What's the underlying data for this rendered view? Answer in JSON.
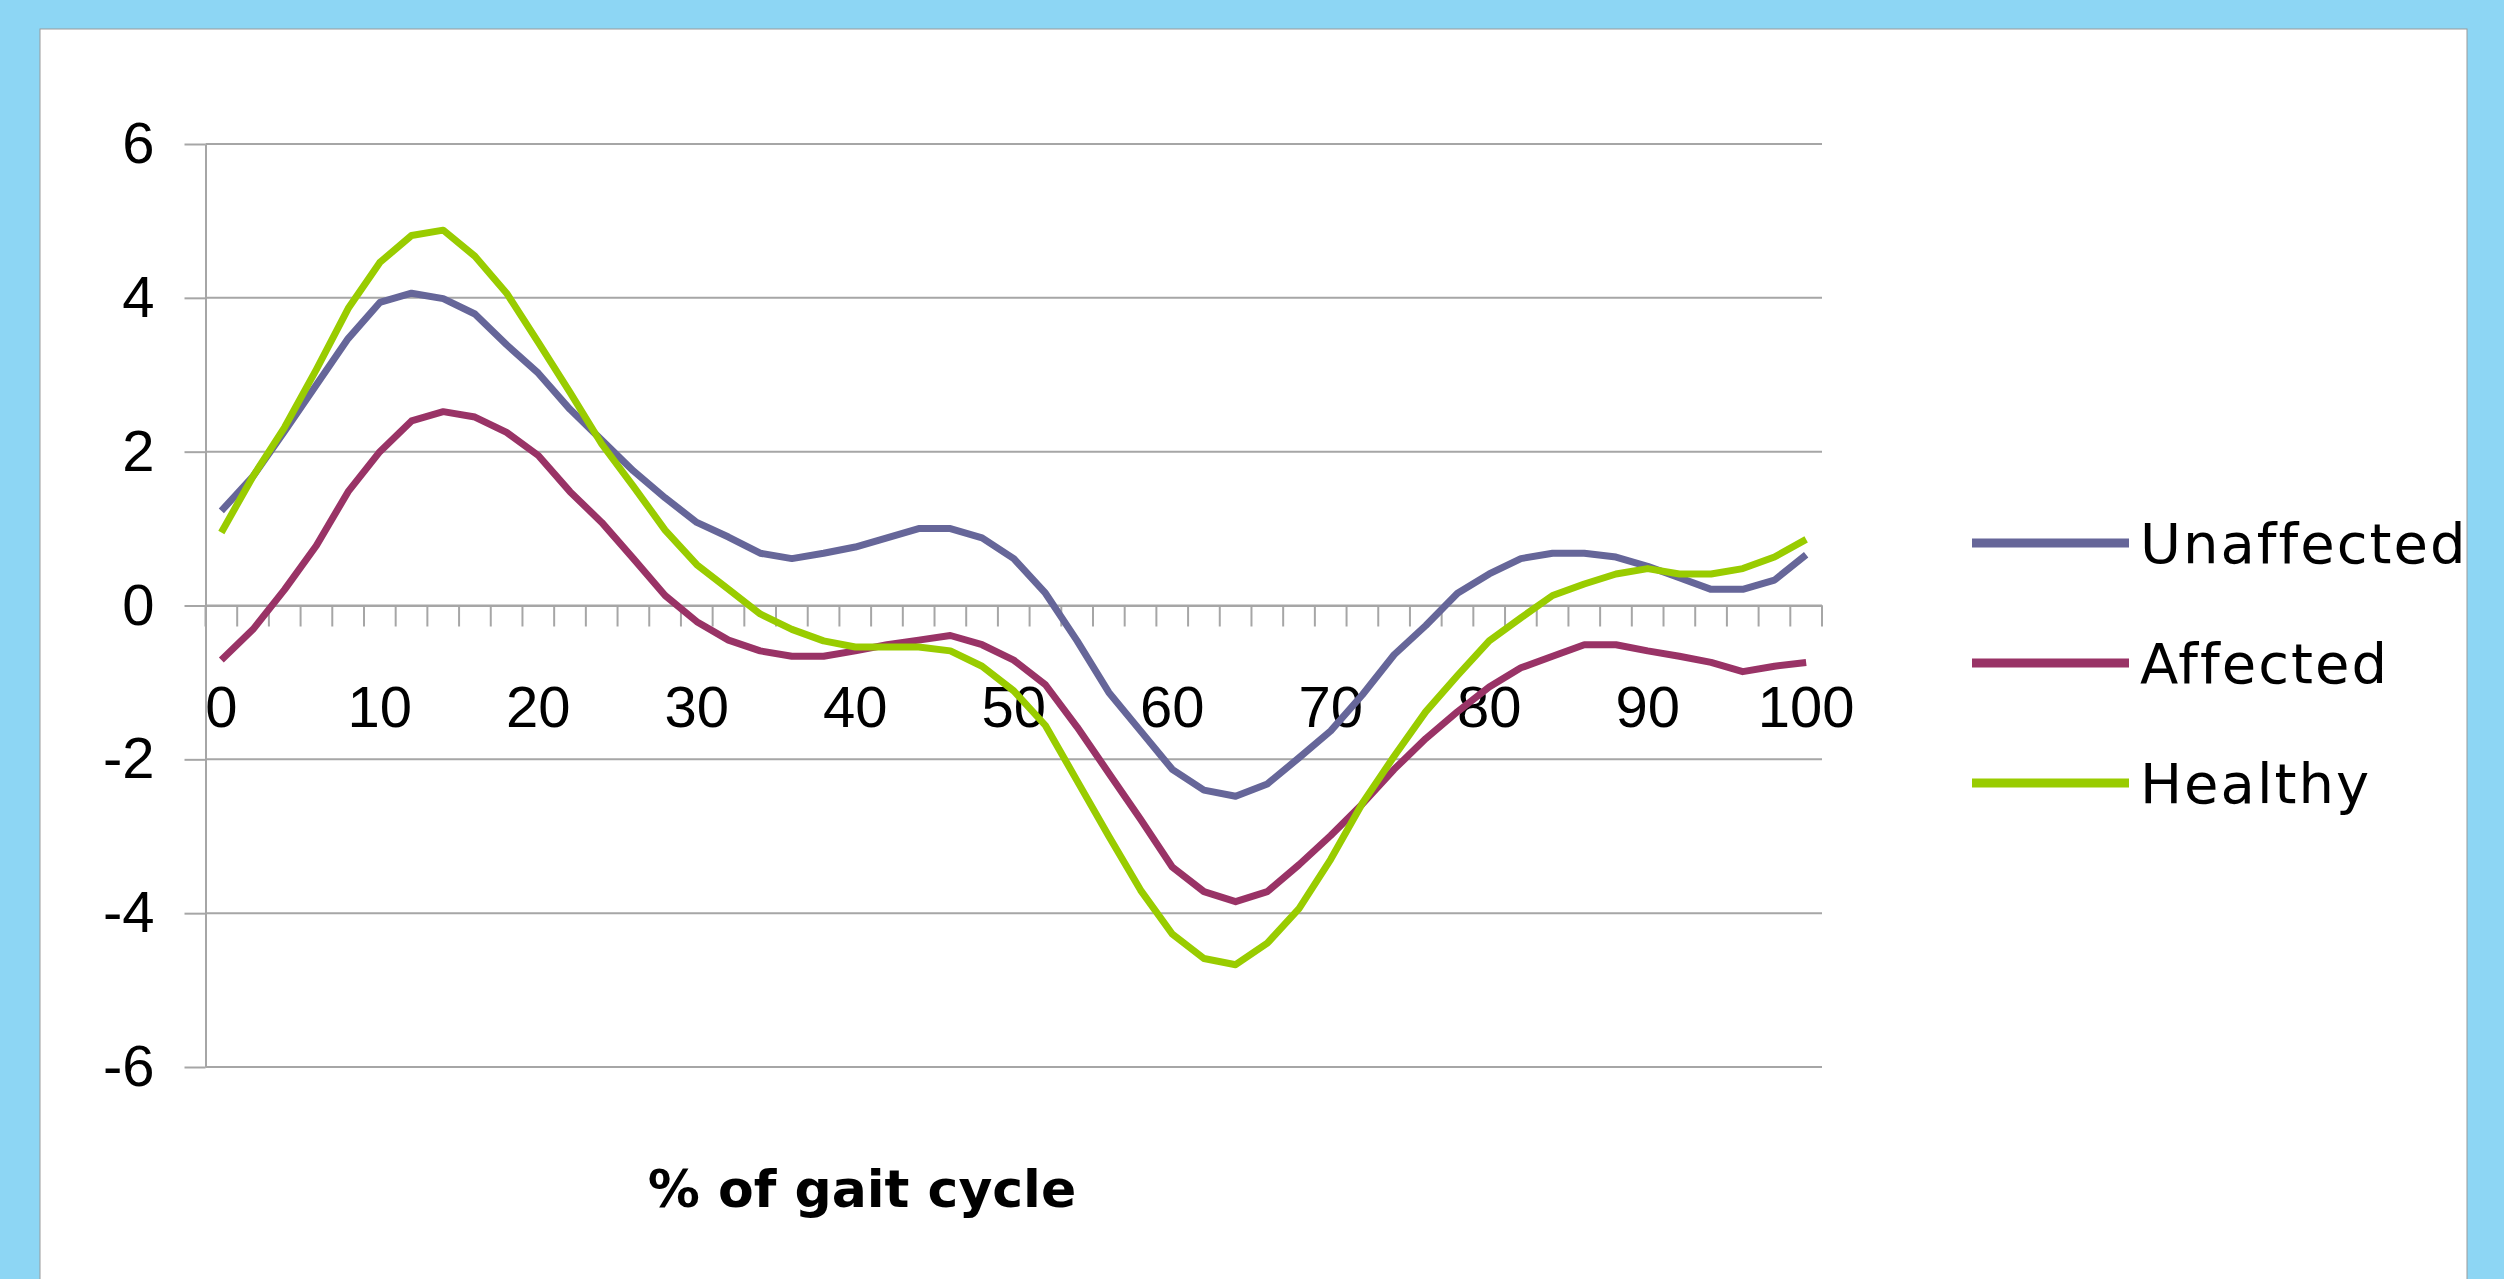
{
  "chart_data": {
    "type": "line",
    "xlabel": "% of gait cycle",
    "categories": [
      "0",
      null,
      null,
      null,
      null,
      "10",
      null,
      null,
      null,
      null,
      "20",
      null,
      null,
      null,
      null,
      "30",
      null,
      null,
      null,
      null,
      "40",
      null,
      null,
      null,
      null,
      "50",
      null,
      null,
      null,
      null,
      "60",
      null,
      null,
      null,
      null,
      "70",
      null,
      null,
      null,
      null,
      "80",
      null,
      null,
      null,
      null,
      "90",
      null,
      null,
      null,
      null,
      "100"
    ],
    "series": [
      {
        "name": "Unaffected",
        "color": "#666699",
        "values": [
          1.23,
          1.68,
          2.27,
          2.87,
          3.47,
          3.94,
          4.06,
          3.99,
          3.79,
          3.39,
          3.02,
          2.55,
          2.15,
          1.75,
          1.4,
          1.08,
          0.89,
          0.68,
          0.61,
          0.68,
          0.76,
          0.88,
          1.0,
          1.0,
          0.88,
          0.61,
          0.16,
          -0.46,
          -1.13,
          -1.63,
          -2.13,
          -2.4,
          -2.48,
          -2.32,
          -1.98,
          -1.63,
          -1.16,
          -0.64,
          -0.26,
          0.16,
          0.41,
          0.61,
          0.68,
          0.68,
          0.63,
          0.51,
          0.36,
          0.21,
          0.21,
          0.33,
          0.66
        ]
      },
      {
        "name": "Affected",
        "color": "#993366",
        "values": [
          -0.71,
          -0.31,
          0.21,
          0.78,
          1.48,
          2.0,
          2.4,
          2.52,
          2.45,
          2.25,
          1.95,
          1.48,
          1.08,
          0.61,
          0.13,
          -0.21,
          -0.45,
          -0.59,
          -0.66,
          -0.66,
          -0.59,
          -0.51,
          -0.45,
          -0.39,
          -0.51,
          -0.71,
          -1.03,
          -1.58,
          -2.18,
          -2.78,
          -3.4,
          -3.72,
          -3.85,
          -3.72,
          -3.37,
          -2.99,
          -2.58,
          -2.13,
          -1.73,
          -1.38,
          -1.06,
          -0.81,
          -0.66,
          -0.51,
          -0.51,
          -0.59,
          -0.66,
          -0.74,
          -0.86,
          -0.79,
          -0.74
        ]
      },
      {
        "name": "Healthy",
        "color": "#99cc00",
        "values": [
          0.95,
          1.68,
          2.32,
          3.07,
          3.86,
          4.46,
          4.81,
          4.88,
          4.54,
          4.06,
          3.42,
          2.77,
          2.1,
          1.55,
          0.98,
          0.53,
          0.21,
          -0.11,
          -0.31,
          -0.46,
          -0.54,
          -0.54,
          -0.54,
          -0.59,
          -0.79,
          -1.11,
          -1.56,
          -2.28,
          -3.0,
          -3.7,
          -4.27,
          -4.59,
          -4.67,
          -4.39,
          -3.94,
          -3.3,
          -2.57,
          -1.96,
          -1.38,
          -0.91,
          -0.46,
          -0.16,
          0.13,
          0.28,
          0.41,
          0.48,
          0.41,
          0.41,
          0.48,
          0.63,
          0.86
        ]
      }
    ],
    "ylim": [
      -6,
      6
    ],
    "yticks": [
      -6,
      -4,
      -2,
      0,
      2,
      4,
      6
    ],
    "grid": "y",
    "legend": "right",
    "marker": "none",
    "line_style": "solid"
  }
}
